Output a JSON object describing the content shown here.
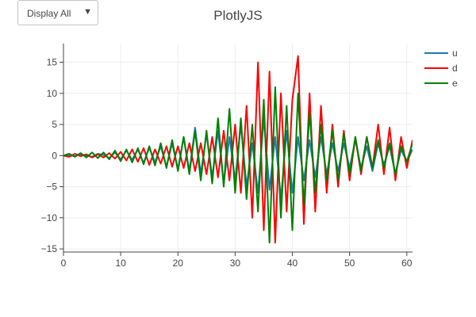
{
  "dropdown": {
    "label": "Display All",
    "arrow": "▼"
  },
  "chart_data": {
    "type": "line",
    "title": "PlotlyJS",
    "xlabel": "",
    "ylabel": "",
    "xlim": [
      0,
      61
    ],
    "ylim": [
      -15.5,
      18
    ],
    "xticks": [
      0,
      10,
      20,
      30,
      40,
      50,
      60
    ],
    "yticks": [
      -15,
      -10,
      -5,
      0,
      5,
      10,
      15
    ],
    "grid": true,
    "legend_position": "top-right",
    "series": [
      {
        "name": "u",
        "color": "#1f77b4",
        "points": [
          [
            0,
            0
          ],
          [
            1,
            0.1
          ],
          [
            2,
            -0.1
          ],
          [
            3,
            0.2
          ],
          [
            4,
            0
          ],
          [
            5,
            -0.2
          ],
          [
            6,
            0.3
          ],
          [
            7,
            0.1
          ],
          [
            8,
            -0.4
          ],
          [
            9,
            0.5
          ],
          [
            10,
            -0.6
          ],
          [
            11,
            0.8
          ],
          [
            12,
            -0.7
          ],
          [
            13,
            1
          ],
          [
            14,
            -1.2
          ],
          [
            15,
            1.3
          ],
          [
            16,
            -1.1
          ],
          [
            17,
            1.5
          ],
          [
            18,
            -1.8
          ],
          [
            19,
            2
          ],
          [
            20,
            -2.2
          ],
          [
            21,
            3
          ],
          [
            22,
            -2.5
          ],
          [
            23,
            4.5
          ],
          [
            24,
            -3
          ],
          [
            25,
            3.5
          ],
          [
            26,
            -3.5
          ],
          [
            27,
            4
          ],
          [
            28,
            -4.5
          ],
          [
            29,
            3
          ],
          [
            30,
            -4
          ],
          [
            31,
            5
          ],
          [
            32,
            -5
          ],
          [
            33,
            2
          ],
          [
            34,
            -6
          ],
          [
            35,
            6
          ],
          [
            36,
            -5.5
          ],
          [
            37,
            3
          ],
          [
            38,
            -7
          ],
          [
            39,
            4
          ],
          [
            40,
            -6
          ],
          [
            41,
            3
          ],
          [
            42,
            -4
          ],
          [
            43,
            2.5
          ],
          [
            44,
            -3.5
          ],
          [
            45,
            3
          ],
          [
            46,
            -3
          ],
          [
            47,
            2
          ],
          [
            48,
            -2.5
          ],
          [
            49,
            2
          ],
          [
            50,
            -2
          ],
          [
            51,
            2.5
          ],
          [
            52,
            -2
          ],
          [
            53,
            1.5
          ],
          [
            54,
            -2.5
          ],
          [
            55,
            2
          ],
          [
            56,
            -1.5
          ],
          [
            57,
            1.5
          ],
          [
            58,
            -3
          ],
          [
            59,
            1
          ],
          [
            60,
            -1
          ],
          [
            61,
            1
          ]
        ]
      },
      {
        "name": "d",
        "color": "#ff0000",
        "points": [
          [
            0,
            0
          ],
          [
            1,
            -0.2
          ],
          [
            2,
            0.3
          ],
          [
            3,
            -0.1
          ],
          [
            4,
            0.2
          ],
          [
            5,
            -0.3
          ],
          [
            6,
            0.2
          ],
          [
            7,
            -0.3
          ],
          [
            8,
            0.4
          ],
          [
            9,
            -0.5
          ],
          [
            10,
            0.6
          ],
          [
            11,
            -0.8
          ],
          [
            12,
            1
          ],
          [
            13,
            -1
          ],
          [
            14,
            1.2
          ],
          [
            15,
            -1.5
          ],
          [
            16,
            1
          ],
          [
            17,
            -1.3
          ],
          [
            18,
            1.5
          ],
          [
            19,
            -1.8
          ],
          [
            20,
            1.5
          ],
          [
            21,
            -2
          ],
          [
            22,
            2
          ],
          [
            23,
            -2.5
          ],
          [
            24,
            2
          ],
          [
            25,
            -3
          ],
          [
            26,
            3
          ],
          [
            27,
            -3.5
          ],
          [
            28,
            4
          ],
          [
            29,
            -4
          ],
          [
            30,
            5
          ],
          [
            31,
            -6
          ],
          [
            32,
            8
          ],
          [
            33,
            -10
          ],
          [
            34,
            15
          ],
          [
            35,
            -12
          ],
          [
            36,
            13.5
          ],
          [
            37,
            -14
          ],
          [
            38,
            10
          ],
          [
            39,
            -9
          ],
          [
            40,
            9
          ],
          [
            41,
            16
          ],
          [
            42,
            -11
          ],
          [
            43,
            10
          ],
          [
            44,
            -9
          ],
          [
            45,
            8
          ],
          [
            46,
            -6
          ],
          [
            47,
            5
          ],
          [
            48,
            -5
          ],
          [
            49,
            4
          ],
          [
            50,
            -4
          ],
          [
            51,
            3
          ],
          [
            52,
            -3
          ],
          [
            53,
            3
          ],
          [
            54,
            -2
          ],
          [
            55,
            5
          ],
          [
            56,
            -3
          ],
          [
            57,
            4.5
          ],
          [
            58,
            -4
          ],
          [
            59,
            3
          ],
          [
            60,
            -2
          ],
          [
            61,
            2.5
          ]
        ]
      },
      {
        "name": "e",
        "color": "#008000",
        "points": [
          [
            0,
            0
          ],
          [
            1,
            0.3
          ],
          [
            2,
            -0.2
          ],
          [
            3,
            0.4
          ],
          [
            4,
            -0.3
          ],
          [
            5,
            0.5
          ],
          [
            6,
            -0.4
          ],
          [
            7,
            0.5
          ],
          [
            8,
            -0.6
          ],
          [
            9,
            0.8
          ],
          [
            10,
            -0.9
          ],
          [
            11,
            1
          ],
          [
            12,
            -1.1
          ],
          [
            13,
            1.2
          ],
          [
            14,
            -1.4
          ],
          [
            15,
            1.5
          ],
          [
            16,
            -1.6
          ],
          [
            17,
            2
          ],
          [
            18,
            -2
          ],
          [
            19,
            2.5
          ],
          [
            20,
            -2.5
          ],
          [
            21,
            3
          ],
          [
            22,
            -3
          ],
          [
            23,
            4
          ],
          [
            24,
            -4
          ],
          [
            25,
            4
          ],
          [
            26,
            -4.5
          ],
          [
            27,
            6
          ],
          [
            28,
            -5
          ],
          [
            29,
            7.5
          ],
          [
            30,
            -6
          ],
          [
            31,
            6
          ],
          [
            32,
            -7
          ],
          [
            33,
            5
          ],
          [
            34,
            -9
          ],
          [
            35,
            9
          ],
          [
            36,
            -14
          ],
          [
            37,
            11
          ],
          [
            38,
            -10
          ],
          [
            39,
            8
          ],
          [
            40,
            -12
          ],
          [
            41,
            10
          ],
          [
            42,
            -8
          ],
          [
            43,
            7
          ],
          [
            44,
            -6
          ],
          [
            45,
            5
          ],
          [
            46,
            -4
          ],
          [
            47,
            4
          ],
          [
            48,
            -4
          ],
          [
            49,
            3.5
          ],
          [
            50,
            -3
          ],
          [
            51,
            3
          ],
          [
            52,
            -2.5
          ],
          [
            53,
            3
          ],
          [
            54,
            -2
          ],
          [
            55,
            2.5
          ],
          [
            56,
            -2
          ],
          [
            57,
            2
          ],
          [
            58,
            -3
          ],
          [
            59,
            1.5
          ],
          [
            60,
            -1
          ],
          [
            61,
            2
          ]
        ]
      }
    ]
  }
}
